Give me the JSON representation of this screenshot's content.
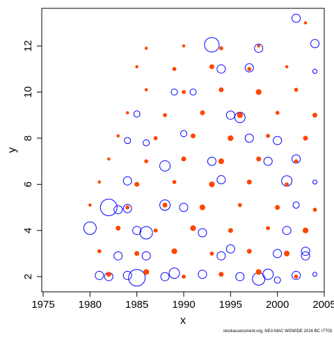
{
  "chart_data": {
    "type": "bubble",
    "xlabel": "x",
    "ylabel": "y",
    "footnote": "stockassessment.org, NEA MAC WGWIDE 2016 BC r7703",
    "xlim": [
      1974.85,
      2005
    ],
    "ylim": [
      1.34,
      13.63
    ],
    "xticks": [
      1975,
      1980,
      1985,
      1990,
      1995,
      2000,
      2005
    ],
    "yticks": [
      2,
      4,
      6,
      8,
      10,
      12
    ],
    "series": [
      {
        "color": "#0000ff",
        "filled": false,
        "x": [
          1980,
          1981,
          1982,
          1982,
          1983,
          1983,
          1984,
          1984,
          1984,
          1984,
          1985,
          1985,
          1985,
          1986,
          1986,
          1986,
          1988,
          1988,
          1988,
          1989,
          1989,
          1990,
          1990,
          1991,
          1992,
          1992,
          1993,
          1993,
          1994,
          1994,
          1994,
          1995,
          1995,
          1996,
          1996,
          1997,
          1997,
          1998,
          1998,
          1999,
          1999,
          2000,
          2000,
          2000,
          2001,
          2001,
          2002,
          2002,
          2002,
          2002,
          2003,
          2003,
          2004,
          2004,
          2004,
          2004
        ],
        "values": [
          4.1,
          2.05,
          5.0,
          2.0,
          4.9,
          2.9,
          6.15,
          4.95,
          2.05,
          7.9,
          1.95,
          9.05,
          4.0,
          3.9,
          7.8,
          2.9,
          5.1,
          6.8,
          2.0,
          10.0,
          2.15,
          8.2,
          5.0,
          10.0,
          3.9,
          2.1,
          12.05,
          7.0,
          11.0,
          6.2,
          2.9,
          3.2,
          9.0,
          8.9,
          2.0,
          11.05,
          8.0,
          11.9,
          1.9,
          7.0,
          2.1,
          7.9,
          3.0,
          1.85,
          6.15,
          4.0,
          13.2,
          7.1,
          5.1,
          2.05,
          2.9,
          3.1,
          12.1,
          10.9,
          6.1,
          2.1
        ],
        "sizes": [
          3,
          2,
          4,
          2,
          2,
          2,
          2,
          2,
          2,
          1.5,
          4,
          1.5,
          2,
          3,
          1.5,
          2,
          2.5,
          2.5,
          2,
          1.5,
          2.5,
          1.5,
          2,
          1.5,
          2,
          2,
          3.5,
          2,
          2,
          2,
          2,
          2,
          2,
          2.5,
          2,
          2,
          2,
          2,
          3,
          2,
          2.5,
          2,
          2,
          1.5,
          2.5,
          2,
          2,
          2,
          1.5,
          2,
          2,
          2,
          2,
          1,
          1,
          1
        ]
      },
      {
        "color": "#ff4500",
        "filled": true,
        "x": [
          1982,
          1986,
          1990,
          1994,
          1998,
          2002,
          1981,
          1985,
          1989,
          1993,
          1997,
          2001,
          1983,
          1987,
          1991,
          1995,
          1999,
          2003,
          1980,
          1984,
          1988,
          1992,
          1996,
          2000,
          2004,
          1981,
          1985,
          1989,
          1993,
          1997,
          2001,
          1982,
          1986,
          1990,
          1994,
          1998,
          2002,
          1983,
          1987,
          1991,
          1995,
          1999,
          2003,
          1984,
          1988,
          1992,
          1996,
          2000,
          2004,
          1986,
          1990,
          1994,
          1998,
          2002,
          1985,
          1989,
          1993,
          1997,
          2001,
          1986,
          1990,
          1994,
          1998,
          2003
        ],
        "values": [
          2.1,
          2.2,
          2.0,
          2.1,
          2.2,
          2.0,
          3.1,
          3.0,
          3.1,
          3.0,
          3.1,
          3.0,
          4.1,
          4.0,
          4.1,
          4.0,
          4.1,
          4.0,
          5.1,
          5.0,
          5.1,
          5.0,
          5.1,
          5.0,
          4.9,
          6.1,
          6.0,
          6.1,
          6.0,
          6.1,
          6.0,
          7.1,
          7.0,
          7.1,
          7.0,
          7.1,
          7.0,
          8.1,
          8.0,
          8.1,
          8.0,
          8.1,
          8.0,
          9.1,
          9.0,
          9.1,
          9.0,
          9.1,
          9.0,
          10.1,
          10.0,
          10.1,
          10.0,
          10.1,
          11.1,
          11.0,
          11.1,
          11.0,
          11.1,
          11.9,
          12.0,
          11.9,
          12.0,
          13.0
        ],
        "sizes": [
          1,
          1.2,
          0.8,
          1,
          1.2,
          0.8,
          0.8,
          1,
          1.2,
          0.8,
          1,
          1.2,
          1,
          0.8,
          1.2,
          1,
          0.8,
          1.2,
          0.6,
          0.8,
          1,
          1.2,
          0.8,
          1,
          0.8,
          0.6,
          1,
          0.8,
          1.2,
          1,
          0.8,
          0.6,
          0.8,
          1,
          1.2,
          1,
          0.8,
          0.6,
          0.8,
          1,
          1.2,
          0.8,
          1,
          0.6,
          0.8,
          1,
          1.2,
          0.8,
          1,
          0.6,
          0.8,
          1,
          1.2,
          0.8,
          0.6,
          0.8,
          1,
          0.8,
          0.6,
          0.6,
          0.6,
          0.8,
          0.6,
          0.6
        ]
      }
    ]
  }
}
